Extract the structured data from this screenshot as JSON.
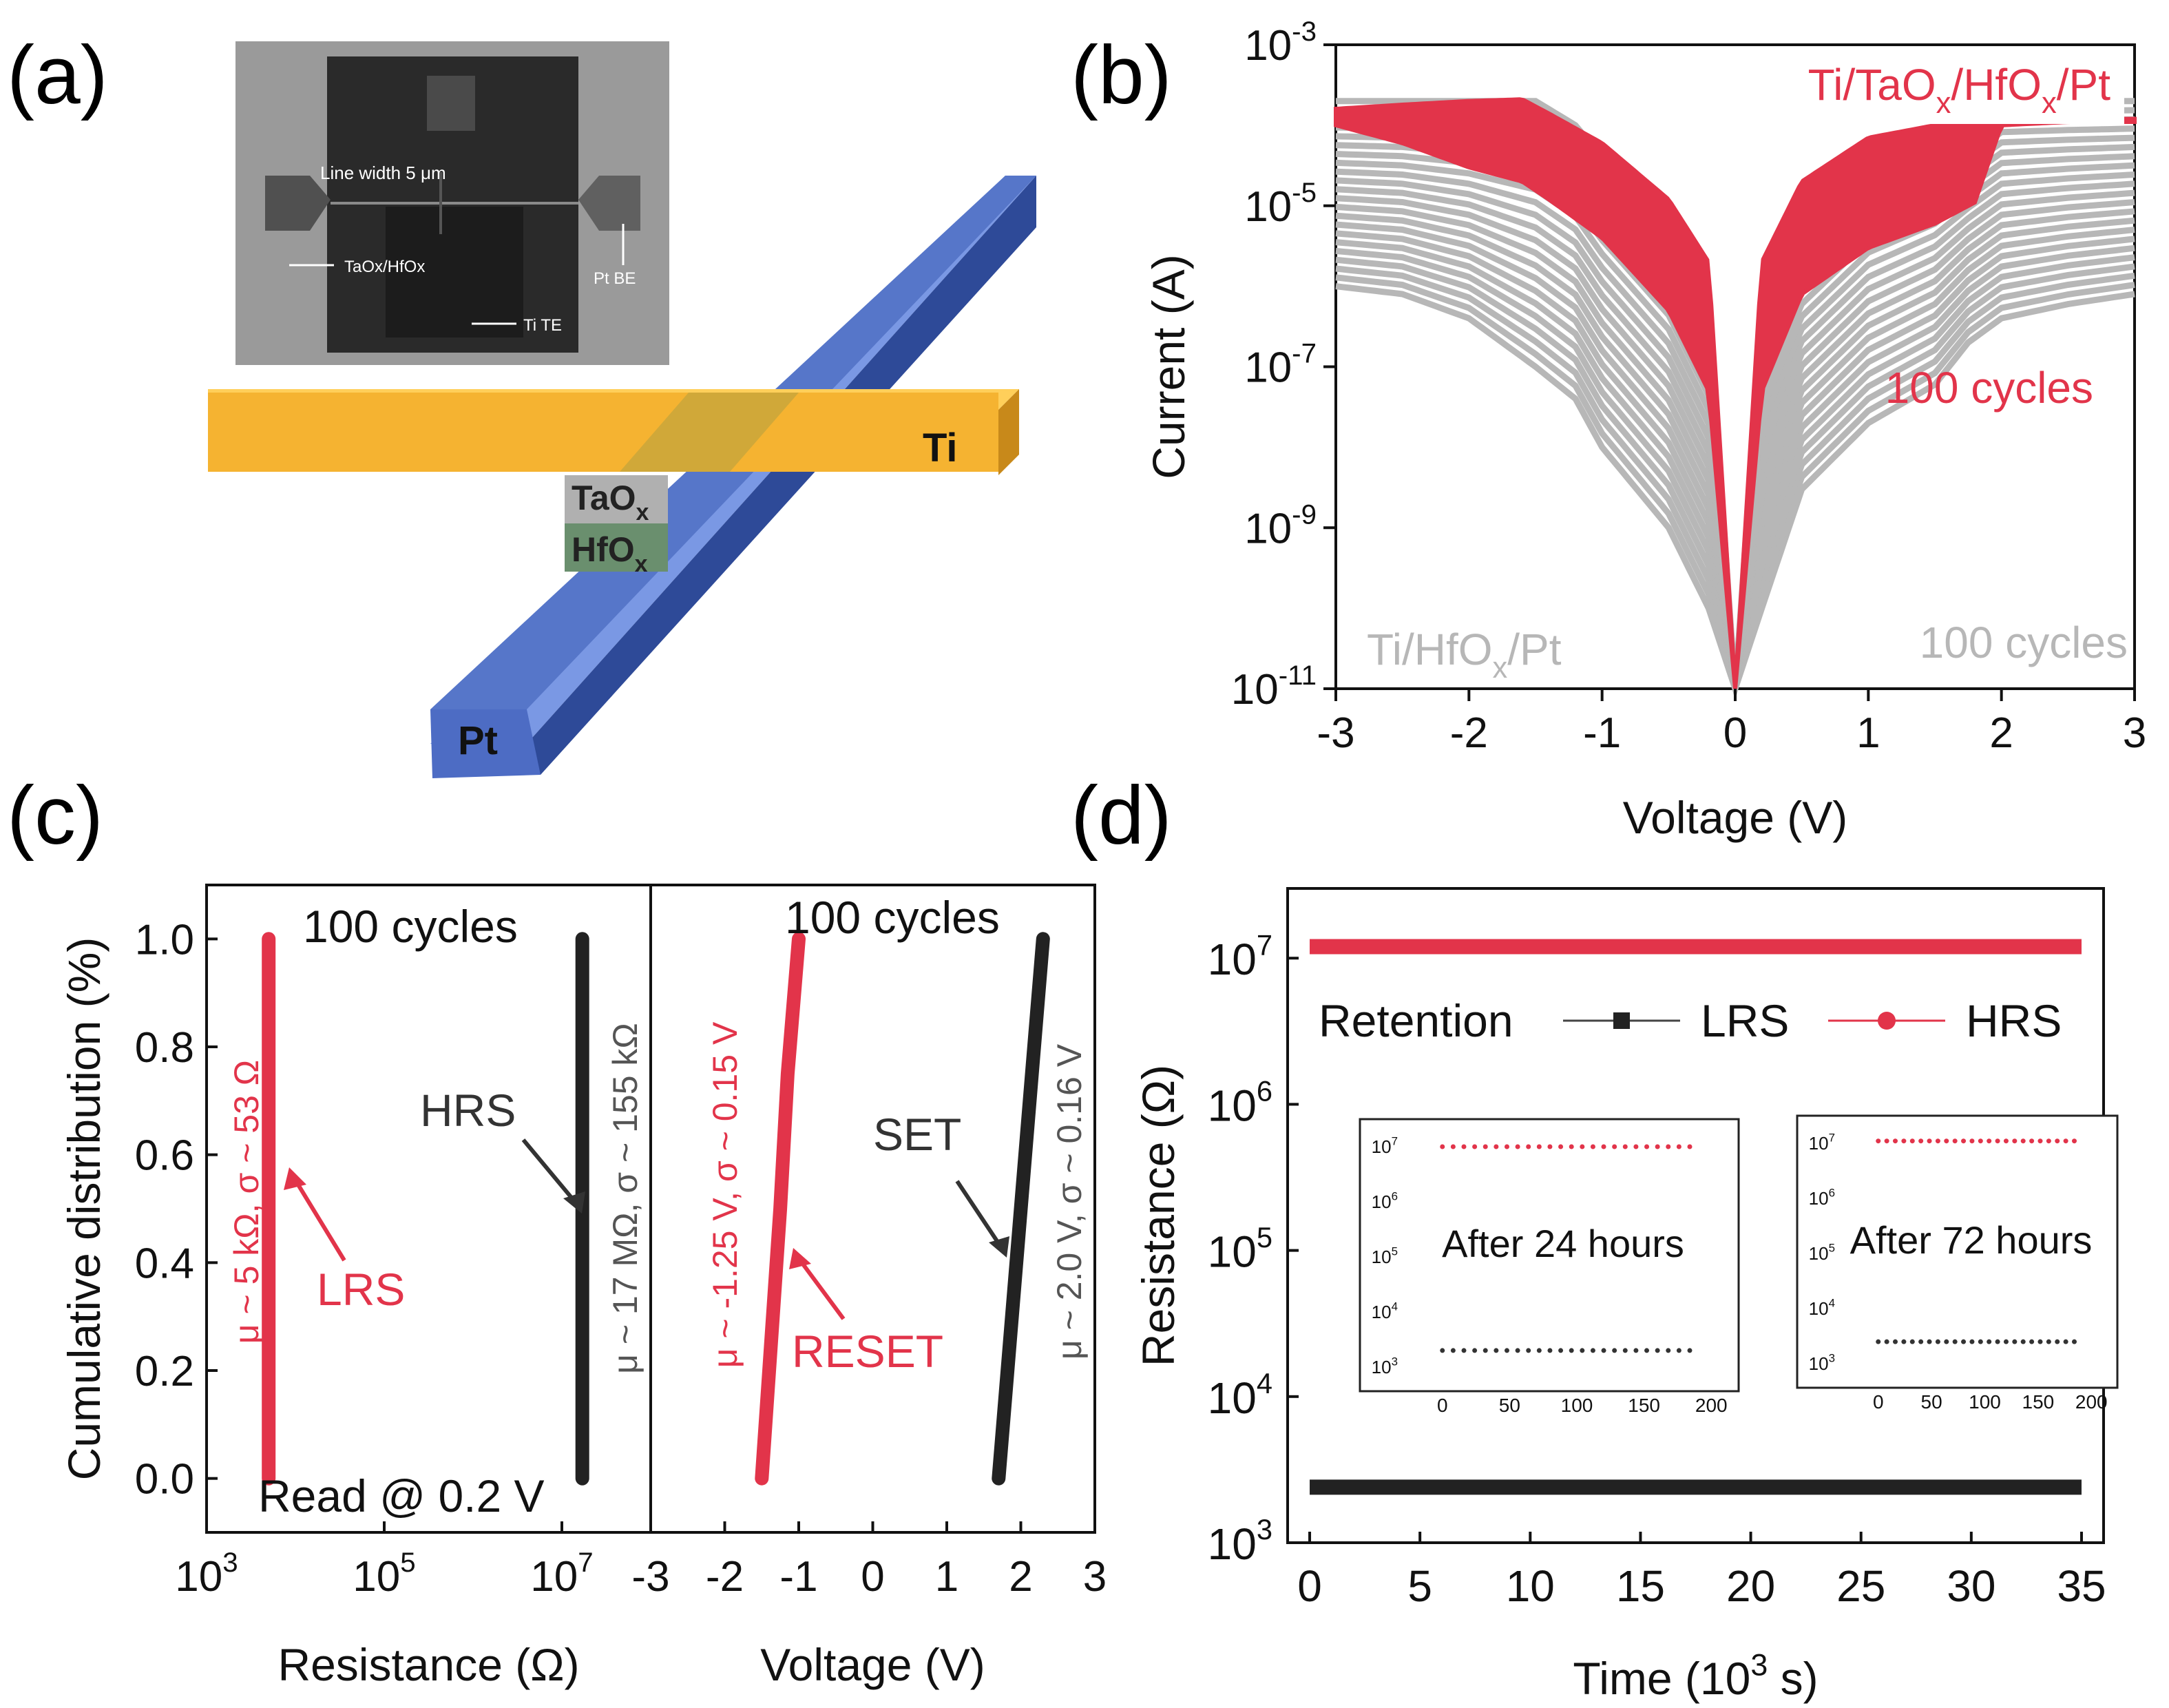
{
  "panel_labels": {
    "a": "(a)",
    "b": "(b)",
    "c": "(c)",
    "d": "(d)"
  },
  "colors": {
    "red": "#e2344a",
    "gray": "#b7b7b7",
    "black": "#222222",
    "yellow": "#f5b331",
    "blue": "#5676c9"
  },
  "panel_a": {
    "inset": {
      "line_width": "Line width 5 μm",
      "taox_hfox": "TaOx/HfOx",
      "pt_be": "Pt BE",
      "ti_te": "Ti TE"
    },
    "labels": {
      "ti": "Ti",
      "pt": "Pt",
      "taox": "TaOx",
      "hfox": "HfOx"
    }
  },
  "chart_data": [
    {
      "id": "b",
      "type": "line",
      "xlabel": "Voltage (V)",
      "ylabel": "Current (A)",
      "xlim": [
        -3,
        3
      ],
      "ylim": [
        1e-11,
        0.001
      ],
      "yscale": "log",
      "xticks": [
        -3,
        -2,
        -1,
        0,
        1,
        2,
        3
      ],
      "yticks": [
        {
          "value": 0.001,
          "base": "10",
          "exp": "-3"
        },
        {
          "value": 1e-05,
          "base": "10",
          "exp": "-5"
        },
        {
          "value": 1e-07,
          "base": "10",
          "exp": "-7"
        },
        {
          "value": 1e-09,
          "base": "10",
          "exp": "-9"
        },
        {
          "value": 1e-11,
          "base": "10",
          "exp": "-11"
        }
      ],
      "series": [
        {
          "name": "Ti/HfOx/Pt",
          "note": "100 cycles",
          "color": "#b7b7b7",
          "x": [
            -3,
            -2.5,
            -2,
            -1.5,
            -1.2,
            -1.0,
            -0.5,
            -0.2,
            0,
            0.2,
            0.5,
            1.0,
            1.5,
            1.75,
            2.0,
            2.5,
            3.0
          ],
          "y_set_branch": [
            0.0002,
            0.0002,
            0.0002,
            0.0002,
            0.0001,
            4e-05,
            5e-06,
            5e-07,
            1e-11,
            5e-07,
            5e-06,
            3e-05,
            6e-05,
            0.0001,
            0.0002,
            0.0002,
            0.0002
          ],
          "y_low_branch": [
            1e-06,
            8e-07,
            4e-07,
            1e-07,
            4e-08,
            1e-08,
            1e-09,
            1e-10,
            1e-11,
            1e-10,
            3e-09,
            2e-08,
            6e-08,
            2e-07,
            4e-07,
            6e-07,
            8e-07
          ]
        },
        {
          "name": "Ti/TaOx/HfOx/Pt",
          "note": "100 cycles",
          "color": "#e2344a",
          "x": [
            -3,
            -2.5,
            -2,
            -1.6,
            -1.4,
            -1.0,
            -0.5,
            -0.2,
            0,
            0.2,
            0.5,
            1.0,
            1.5,
            1.8,
            2.0,
            2.5,
            3.0
          ],
          "y_upper": [
            0.00016,
            0.00018,
            0.0002,
            0.00021,
            0.00014,
            6e-05,
            1.2e-05,
            2e-06,
            1e-11,
            2e-06,
            2e-05,
            7e-05,
            0.0001,
            0.00011,
            0.00012,
            0.00012,
            0.00012
          ],
          "y_lower": [
            0.0001,
            6e-05,
            3e-05,
            2e-05,
            1.2e-05,
            4e-06,
            5e-07,
            5e-08,
            1e-11,
            5e-08,
            8e-07,
            3e-06,
            6e-06,
            1.1e-05,
            0.0001,
            0.00011,
            0.00011
          ]
        }
      ],
      "legend": {
        "red_title": {
          "parts": [
            {
              "t": "Ti/TaO"
            },
            {
              "t": "x",
              "sub": true
            },
            {
              "t": "/HfO"
            },
            {
              "t": "x",
              "sub": true
            },
            {
              "t": "/Pt"
            }
          ]
        },
        "red_cycles": "100 cycles",
        "gray_title": {
          "parts": [
            {
              "t": "Ti/HfO"
            },
            {
              "t": "x",
              "sub": true
            },
            {
              "t": "/Pt"
            }
          ]
        },
        "gray_cycles": "100 cycles"
      }
    },
    {
      "id": "c-left",
      "type": "line",
      "xlabel": "Resistance (Ω)",
      "ylabel": "Cumulative distribution (%)",
      "xlim": [
        1000.0,
        100000000.0
      ],
      "xscale": "log",
      "ylim": [
        -0.1,
        1.1
      ],
      "xticks": [
        {
          "value": 1000.0,
          "base": "10",
          "exp": "3"
        },
        {
          "value": 100000.0,
          "base": "10",
          "exp": "5"
        },
        {
          "value": 10000000.0,
          "base": "10",
          "exp": "7"
        }
      ],
      "yticks": [
        "0.0",
        "0.2",
        "0.4",
        "0.6",
        "0.8",
        "1.0"
      ],
      "series": [
        {
          "name": "LRS",
          "color": "#e2344a",
          "x": [
            5000,
            5000
          ],
          "y": [
            0,
            1.0
          ],
          "stats": "μ ~ 5 kΩ,  σ ~ 53 Ω"
        },
        {
          "name": "HRS",
          "color": "#222222",
          "x": [
            17000000.0,
            17000000.0
          ],
          "y": [
            0,
            1.0
          ],
          "stats": "μ ~ 17 MΩ,  σ ~ 155 kΩ"
        }
      ],
      "annotations": {
        "cycles": "100 cycles",
        "read": "Read @ 0.2 V",
        "lrs": "LRS",
        "hrs": "HRS"
      }
    },
    {
      "id": "c-right",
      "type": "line",
      "xlabel": "Voltage (V)",
      "xlim": [
        -3,
        3
      ],
      "ylim": [
        -0.1,
        1.1
      ],
      "xticks": [
        "-3",
        "-2",
        "-1",
        "0",
        "1",
        "2",
        "3"
      ],
      "series": [
        {
          "name": "RESET",
          "color": "#e2344a",
          "x": [
            -1.5,
            -1.35,
            -1.25,
            -1.15,
            -1.0
          ],
          "y": [
            0,
            0.3,
            0.5,
            0.75,
            1.0
          ],
          "stats": "μ ~ -1.25 V, σ ~ 0.15 V"
        },
        {
          "name": "SET",
          "color": "#222222",
          "x": [
            1.7,
            1.85,
            2.0,
            2.15,
            2.3
          ],
          "y": [
            0,
            0.25,
            0.5,
            0.75,
            1.0
          ],
          "stats": "μ ~ 2.0 V, σ ~ 0.16 V"
        }
      ],
      "annotations": {
        "cycles": "100 cycles",
        "reset": "RESET",
        "set": "SET"
      }
    },
    {
      "id": "d",
      "type": "scatter",
      "xlabel": {
        "parts": [
          {
            "t": "Time (10"
          },
          {
            "t": "3",
            "sup": true
          },
          {
            "t": " s)"
          }
        ]
      },
      "ylabel": "Resistance (Ω)",
      "xlim": [
        -1,
        36
      ],
      "ylim": [
        1000.0,
        30000000.0
      ],
      "yscale": "log",
      "xticks": [
        "0",
        "5",
        "10",
        "15",
        "20",
        "25",
        "30",
        "35"
      ],
      "yticks": [
        {
          "value": 1000.0,
          "base": "10",
          "exp": "3"
        },
        {
          "value": 10000.0,
          "base": "10",
          "exp": "4"
        },
        {
          "value": 100000.0,
          "base": "10",
          "exp": "5"
        },
        {
          "value": 1000000.0,
          "base": "10",
          "exp": "6"
        },
        {
          "value": 10000000.0,
          "base": "10",
          "exp": "7"
        }
      ],
      "series": [
        {
          "name": "LRS",
          "color": "#222222",
          "marker": "square",
          "x_range": [
            0,
            35
          ],
          "y": 2400
        },
        {
          "name": "HRS",
          "color": "#e2344a",
          "marker": "circle",
          "x_range": [
            0,
            35
          ],
          "y": 12000000.0
        }
      ],
      "legend_title": "Retention",
      "insets": [
        {
          "title": "After 24 hours",
          "xlim": [
            -5,
            205
          ],
          "xticks": [
            "0",
            "50",
            "100",
            "150",
            "200"
          ],
          "yticks": [
            {
              "base": "10",
              "exp": "3"
            },
            {
              "base": "10",
              "exp": "4"
            },
            {
              "base": "10",
              "exp": "5"
            },
            {
              "base": "10",
              "exp": "6"
            },
            {
              "base": "10",
              "exp": "7"
            }
          ],
          "series": [
            {
              "name": "HRS",
              "y": 10000000.0
            },
            {
              "name": "LRS",
              "y": 2000
            }
          ]
        },
        {
          "title": "After 72 hours",
          "xlim": [
            -5,
            205
          ],
          "xticks": [
            "0",
            "50",
            "100",
            "150",
            "200"
          ],
          "yticks": [
            {
              "base": "10",
              "exp": "3"
            },
            {
              "base": "10",
              "exp": "4"
            },
            {
              "base": "10",
              "exp": "5"
            },
            {
              "base": "10",
              "exp": "6"
            },
            {
              "base": "10",
              "exp": "7"
            }
          ],
          "series": [
            {
              "name": "HRS",
              "y": 11000000.0
            },
            {
              "name": "LRS",
              "y": 2500
            }
          ]
        }
      ]
    }
  ]
}
